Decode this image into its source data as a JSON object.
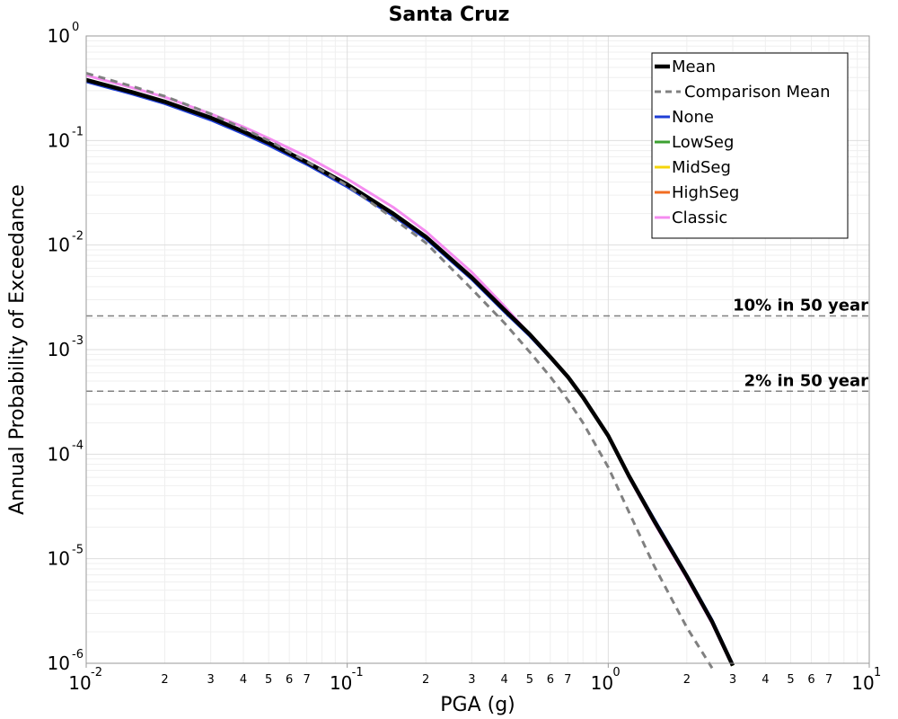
{
  "chart_data": {
    "type": "line",
    "title": "Santa Cruz",
    "xlabel": "PGA (g)",
    "ylabel": "Annual Probability of Exceedance",
    "x_scale": "log",
    "y_scale": "log",
    "xlim": [
      0.01,
      10
    ],
    "ylim": [
      1e-06,
      1
    ],
    "grid": true,
    "legend_position": "top-right",
    "x_major_ticks": [
      {
        "value": 0.01,
        "base": "10",
        "exp": "-2"
      },
      {
        "value": 0.1,
        "base": "10",
        "exp": "-1"
      },
      {
        "value": 1,
        "base": "10",
        "exp": "0"
      },
      {
        "value": 10,
        "base": "10",
        "exp": "1"
      }
    ],
    "x_minor_tick_labels": [
      "2",
      "3",
      "4",
      "5",
      "6",
      "7"
    ],
    "y_major_ticks": [
      {
        "value": 1,
        "base": "10",
        "exp": "0"
      },
      {
        "value": 0.1,
        "base": "10",
        "exp": "-1"
      },
      {
        "value": 0.01,
        "base": "10",
        "exp": "-2"
      },
      {
        "value": 0.001,
        "base": "10",
        "exp": "-3"
      },
      {
        "value": 0.0001,
        "base": "10",
        "exp": "-4"
      },
      {
        "value": 1e-05,
        "base": "10",
        "exp": "-5"
      },
      {
        "value": 1e-06,
        "base": "10",
        "exp": "-6"
      }
    ],
    "reference_lines": [
      {
        "label": "10% in 50 year",
        "y": 0.0021,
        "color": "#808080"
      },
      {
        "label": "2% in 50 year",
        "y": 0.0004,
        "color": "#808080"
      }
    ],
    "series": [
      {
        "name": "Classic",
        "color": "#f58cf0",
        "dash": "solid",
        "width": 3,
        "x": [
          0.01,
          0.015,
          0.02,
          0.03,
          0.04,
          0.05,
          0.07,
          0.1,
          0.15,
          0.2,
          0.3,
          0.4,
          0.5,
          0.6,
          0.7,
          0.8,
          1.0,
          1.2,
          1.5,
          2.0,
          2.5,
          2.9
        ],
        "y": [
          0.42,
          0.32,
          0.26,
          0.18,
          0.135,
          0.105,
          0.07,
          0.043,
          0.023,
          0.0135,
          0.0055,
          0.0026,
          0.0014,
          0.00085,
          0.00055,
          0.00035,
          0.00015,
          6e-05,
          2.2e-05,
          6.5e-06,
          2.4e-06,
          1.1e-06
        ]
      },
      {
        "name": "HighSeg",
        "color": "#f26d21",
        "dash": "solid",
        "width": 3,
        "x": [
          0.01,
          0.015,
          0.02,
          0.03,
          0.04,
          0.05,
          0.07,
          0.1,
          0.15,
          0.2,
          0.3,
          0.4,
          0.5,
          0.6,
          0.7,
          0.8,
          1.0,
          1.2,
          1.5,
          2.0,
          2.5,
          3.0
        ],
        "y": [
          0.38,
          0.29,
          0.235,
          0.165,
          0.122,
          0.095,
          0.062,
          0.038,
          0.02,
          0.012,
          0.0049,
          0.0024,
          0.0014,
          0.00085,
          0.00055,
          0.00035,
          0.00015,
          6.2e-05,
          2.3e-05,
          6.8e-06,
          2.5e-06,
          9.5e-07
        ]
      },
      {
        "name": "MidSeg",
        "color": "#f5d50a",
        "dash": "solid",
        "width": 3,
        "x": [
          0.01,
          0.015,
          0.02,
          0.03,
          0.04,
          0.05,
          0.07,
          0.1,
          0.15,
          0.2,
          0.3,
          0.4,
          0.5,
          0.6,
          0.7,
          0.8,
          1.0,
          1.2,
          1.5,
          2.0,
          2.5,
          3.0
        ],
        "y": [
          0.38,
          0.29,
          0.235,
          0.165,
          0.122,
          0.095,
          0.062,
          0.038,
          0.02,
          0.012,
          0.0049,
          0.0024,
          0.0014,
          0.00085,
          0.00055,
          0.00035,
          0.00015,
          6.2e-05,
          2.3e-05,
          6.8e-06,
          2.5e-06,
          9.5e-07
        ]
      },
      {
        "name": "LowSeg",
        "color": "#3ca031",
        "dash": "solid",
        "width": 3,
        "x": [
          0.01,
          0.015,
          0.02,
          0.03,
          0.04,
          0.05,
          0.07,
          0.1,
          0.15,
          0.2,
          0.3,
          0.4,
          0.5,
          0.6,
          0.7,
          0.8,
          1.0,
          1.2,
          1.5,
          2.0,
          2.5,
          3.0
        ],
        "y": [
          0.38,
          0.29,
          0.235,
          0.165,
          0.122,
          0.095,
          0.062,
          0.038,
          0.02,
          0.012,
          0.0049,
          0.0024,
          0.0014,
          0.00085,
          0.00055,
          0.00035,
          0.00015,
          6.2e-05,
          2.3e-05,
          6.8e-06,
          2.5e-06,
          9.5e-07
        ]
      },
      {
        "name": "None",
        "color": "#1f3ed6",
        "dash": "solid",
        "width": 3,
        "x": [
          0.01,
          0.015,
          0.02,
          0.03,
          0.04,
          0.05,
          0.07,
          0.1,
          0.15,
          0.2,
          0.3,
          0.4,
          0.5,
          0.6,
          0.7,
          0.8,
          1.0,
          1.2,
          1.5,
          2.0,
          2.5,
          3.0
        ],
        "y": [
          0.365,
          0.278,
          0.225,
          0.157,
          0.116,
          0.09,
          0.059,
          0.036,
          0.019,
          0.0115,
          0.0047,
          0.0023,
          0.00135,
          0.00083,
          0.00054,
          0.00035,
          0.00015,
          6.3e-05,
          2.4e-05,
          7e-06,
          2.6e-06,
          9.8e-07
        ]
      },
      {
        "name": "Mean",
        "color": "#000000",
        "dash": "solid",
        "width": 4.5,
        "x": [
          0.01,
          0.015,
          0.02,
          0.03,
          0.04,
          0.05,
          0.07,
          0.1,
          0.15,
          0.2,
          0.3,
          0.4,
          0.5,
          0.6,
          0.7,
          0.8,
          1.0,
          1.2,
          1.5,
          2.0,
          2.5,
          3.0
        ],
        "y": [
          0.38,
          0.29,
          0.235,
          0.165,
          0.122,
          0.095,
          0.062,
          0.038,
          0.02,
          0.012,
          0.0049,
          0.0024,
          0.0014,
          0.00085,
          0.00055,
          0.00035,
          0.00015,
          6.2e-05,
          2.3e-05,
          6.8e-06,
          2.5e-06,
          9.5e-07
        ]
      },
      {
        "name": "Comparison Mean",
        "color": "#808080",
        "dash": "8,6",
        "width": 3,
        "x": [
          0.01,
          0.015,
          0.02,
          0.03,
          0.04,
          0.05,
          0.07,
          0.1,
          0.15,
          0.2,
          0.3,
          0.4,
          0.5,
          0.6,
          0.7,
          0.8,
          1.0,
          1.2,
          1.5,
          2.0,
          2.5
        ],
        "y": [
          0.44,
          0.33,
          0.265,
          0.18,
          0.13,
          0.1,
          0.063,
          0.037,
          0.018,
          0.0105,
          0.0038,
          0.0018,
          0.00095,
          0.00055,
          0.00033,
          0.0002,
          7.5e-05,
          2.8e-05,
          8.5e-06,
          2.2e-06,
          9e-07
        ]
      }
    ],
    "legend": [
      {
        "label": "Mean",
        "color": "#000000",
        "dash": "solid",
        "width": 4.5
      },
      {
        "label": "Comparison Mean",
        "color": "#808080",
        "dash": "8,6",
        "width": 3
      },
      {
        "label": "None",
        "color": "#1f3ed6",
        "dash": "solid",
        "width": 3
      },
      {
        "label": "LowSeg",
        "color": "#3ca031",
        "dash": "solid",
        "width": 3
      },
      {
        "label": "MidSeg",
        "color": "#f5d50a",
        "dash": "solid",
        "width": 3
      },
      {
        "label": "HighSeg",
        "color": "#f26d21",
        "dash": "solid",
        "width": 3
      },
      {
        "label": "Classic",
        "color": "#f58cf0",
        "dash": "solid",
        "width": 3
      }
    ]
  }
}
